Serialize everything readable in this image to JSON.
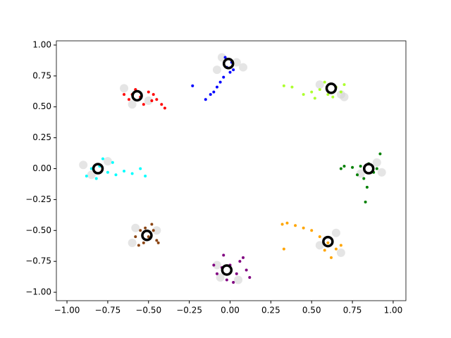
{
  "chart_data": {
    "type": "scatter",
    "xlim": [
      -1.065,
      1.078
    ],
    "ylim": [
      -1.068,
      1.034
    ],
    "xticks": [
      {
        "value": -1,
        "label": "−1.00"
      },
      {
        "value": -0.75,
        "label": "−0.75"
      },
      {
        "value": -0.5,
        "label": "−0.50"
      },
      {
        "value": -0.25,
        "label": "−0.25"
      },
      {
        "value": 0,
        "label": "0.00"
      },
      {
        "value": 0.25,
        "label": "0.25"
      },
      {
        "value": 0.5,
        "label": "0.50"
      },
      {
        "value": 0.75,
        "label": "0.75"
      },
      {
        "value": 1,
        "label": "1.00"
      }
    ],
    "yticks": [
      {
        "value": -1,
        "label": "−1.00"
      },
      {
        "value": -0.75,
        "label": "−0.75"
      },
      {
        "value": -0.5,
        "label": "−0.50"
      },
      {
        "value": -0.25,
        "label": "−0.25"
      },
      {
        "value": 0,
        "label": "0.00"
      },
      {
        "value": 0.25,
        "label": "0.25"
      },
      {
        "value": 0.5,
        "label": "0.50"
      },
      {
        "value": 0.75,
        "label": "0.75"
      },
      {
        "value": 1,
        "label": "1.00"
      }
    ],
    "series": [
      {
        "color": "#d3d3d3",
        "x": [
          -0.05,
          0.04,
          -0.08,
          0.08,
          0.55,
          0.68,
          0.7,
          0.9,
          0.8,
          0.93,
          0.55,
          0.65,
          0.68,
          -0.08,
          0.05,
          -0.06,
          -0.6,
          -0.45,
          -0.58,
          -0.9,
          -0.75,
          -0.85,
          -0.65,
          -0.5,
          -0.6
        ],
        "y": [
          0.9,
          0.86,
          0.8,
          0.82,
          0.68,
          0.6,
          0.58,
          0.05,
          -0.04,
          -0.03,
          -0.62,
          -0.52,
          -0.68,
          -0.78,
          -0.9,
          -0.88,
          -0.6,
          -0.5,
          -0.48,
          0.03,
          0.06,
          -0.05,
          0.65,
          0.55,
          0.52
        ]
      },
      {
        "color": "#0000ff",
        "x": [
          -0.02,
          0.0,
          0.02,
          -0.04,
          -0.06,
          -0.08,
          -0.1,
          -0.12,
          -0.15,
          -0.23,
          0.01,
          -0.03
        ],
        "y": [
          0.82,
          0.78,
          0.8,
          0.74,
          0.7,
          0.66,
          0.62,
          0.6,
          0.56,
          0.67,
          0.86,
          0.9
        ]
      },
      {
        "color": "#adff2f",
        "x": [
          0.5,
          0.55,
          0.6,
          0.65,
          0.7,
          0.58,
          0.45,
          0.38,
          0.33,
          0.68,
          0.52,
          0.63
        ],
        "y": [
          0.62,
          0.64,
          0.6,
          0.66,
          0.68,
          0.7,
          0.6,
          0.66,
          0.67,
          0.62,
          0.57,
          0.58
        ]
      },
      {
        "color": "#008000",
        "x": [
          0.8,
          0.85,
          0.9,
          0.88,
          0.75,
          0.7,
          0.68,
          0.82,
          0.84,
          0.83,
          0.92,
          0.78
        ],
        "y": [
          0.02,
          0.04,
          0.0,
          -0.03,
          0.01,
          0.02,
          0.0,
          -0.08,
          -0.15,
          -0.27,
          0.12,
          -0.05
        ]
      },
      {
        "color": "#ffa500",
        "x": [
          0.55,
          0.6,
          0.65,
          0.5,
          0.45,
          0.4,
          0.35,
          0.32,
          0.62,
          0.68,
          0.58,
          0.33
        ],
        "y": [
          -0.55,
          -0.6,
          -0.65,
          -0.5,
          -0.48,
          -0.46,
          -0.44,
          -0.45,
          -0.72,
          -0.62,
          -0.66,
          -0.65
        ]
      },
      {
        "color": "#800080",
        "x": [
          -0.05,
          0.0,
          0.04,
          -0.02,
          -0.08,
          0.06,
          0.1,
          0.12,
          -0.04,
          0.02,
          -0.1,
          0.08
        ],
        "y": [
          -0.8,
          -0.78,
          -0.85,
          -0.9,
          -0.85,
          -0.75,
          -0.82,
          -0.88,
          -0.7,
          -0.92,
          -0.78,
          -0.72
        ]
      },
      {
        "color": "#8b4513",
        "x": [
          -0.55,
          -0.5,
          -0.47,
          -0.53,
          -0.58,
          -0.45,
          -0.48,
          -0.52,
          -0.44,
          -0.56
        ],
        "y": [
          -0.5,
          -0.55,
          -0.5,
          -0.6,
          -0.55,
          -0.58,
          -0.45,
          -0.48,
          -0.6,
          -0.62
        ]
      },
      {
        "color": "#00ffff",
        "x": [
          -0.85,
          -0.8,
          -0.75,
          -0.7,
          -0.65,
          -0.6,
          -0.55,
          -0.52,
          -0.78,
          -0.88,
          -0.72,
          -0.82
        ],
        "y": [
          0.0,
          0.02,
          -0.03,
          -0.05,
          -0.02,
          -0.04,
          0.0,
          -0.06,
          0.08,
          -0.06,
          0.05,
          -0.08
        ]
      },
      {
        "color": "#ff0000",
        "x": [
          -0.6,
          -0.55,
          -0.5,
          -0.48,
          -0.45,
          -0.42,
          -0.4,
          -0.58,
          -0.62,
          -0.53,
          -0.47,
          -0.65
        ],
        "y": [
          0.6,
          0.58,
          0.62,
          0.55,
          0.56,
          0.52,
          0.49,
          0.64,
          0.56,
          0.52,
          0.6,
          0.6
        ]
      },
      {
        "color": "#000000",
        "marker": "ring",
        "x": [
          -0.01,
          0.62,
          0.85,
          0.6,
          -0.02,
          -0.51,
          -0.81,
          -0.57
        ],
        "y": [
          0.85,
          0.65,
          0.0,
          -0.59,
          -0.82,
          -0.54,
          0.0,
          0.59
        ]
      }
    ]
  }
}
